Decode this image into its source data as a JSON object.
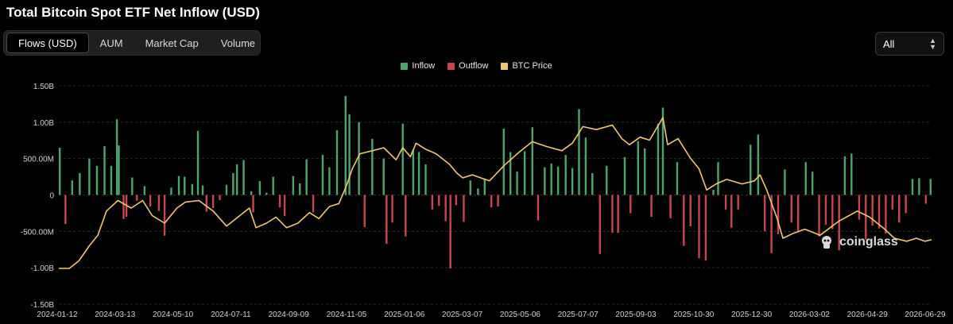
{
  "title": "Total Bitcoin Spot ETF Net Inflow (USD)",
  "tabs": [
    {
      "label": "Flows (USD)",
      "active": true
    },
    {
      "label": "AUM",
      "active": false
    },
    {
      "label": "Market Cap",
      "active": false
    },
    {
      "label": "Volume",
      "active": false
    }
  ],
  "range_select": {
    "value": "All",
    "icon": "up-down-chevron-icon"
  },
  "watermark": {
    "text": "coinglass",
    "icon": "coinglass-logo-icon"
  },
  "colors": {
    "inflow": "#4fa36b",
    "outflow": "#c8474f",
    "btc_price": "#f0c675",
    "grid": "#2a2a2a",
    "axis_text": "#d0d0d0"
  },
  "chart_data": {
    "type": "bar",
    "title": "Total Bitcoin Spot ETF Net Inflow (USD)",
    "legend": [
      "Inflow",
      "Outflow",
      "BTC Price"
    ],
    "legend_position": "top-center",
    "grid": true,
    "ylim": [
      -1500000000,
      1500000000
    ],
    "y_ticks": [
      {
        "value": 1500000000,
        "label": "1.50B"
      },
      {
        "value": 1000000000,
        "label": "1.00B"
      },
      {
        "value": 500000000,
        "label": "500.00M"
      },
      {
        "value": 0,
        "label": "0"
      },
      {
        "value": -500000000,
        "label": "-500.00M"
      },
      {
        "value": -1000000000,
        "label": "-1.00B"
      },
      {
        "value": -1500000000,
        "label": "-1.50B"
      }
    ],
    "x_ticks": [
      "2024-01-12",
      "2024-03-13",
      "2024-05-10",
      "2024-07-11",
      "2024-09-09",
      "2024-11-05",
      "2025-01-06",
      "2025-03-07",
      "2025-05-06",
      "2025-07-07",
      "2025-09-03",
      "2025-10-30",
      "2025-12-30",
      "2026-03-02",
      "2026-04-29",
      "2026-06-29"
    ],
    "date_range": [
      "2024-01-11",
      "2026-07-15"
    ],
    "series": [
      {
        "name": "Inflow / Outflow",
        "kind": "bars",
        "points": [
          [
            "2024-01-12",
            650000000
          ],
          [
            "2024-01-18",
            -400000000
          ],
          [
            "2024-01-25",
            200000000
          ],
          [
            "2024-02-02",
            300000000
          ],
          [
            "2024-02-12",
            500000000
          ],
          [
            "2024-02-20",
            400000000
          ],
          [
            "2024-02-28",
            670000000
          ],
          [
            "2024-03-06",
            400000000
          ],
          [
            "2024-03-12",
            1040000000
          ],
          [
            "2024-03-14",
            680000000
          ],
          [
            "2024-03-19",
            -330000000
          ],
          [
            "2024-03-22",
            -300000000
          ],
          [
            "2024-03-28",
            240000000
          ],
          [
            "2024-04-02",
            -80000000
          ],
          [
            "2024-04-10",
            120000000
          ],
          [
            "2024-04-16",
            -160000000
          ],
          [
            "2024-04-25",
            -220000000
          ],
          [
            "2024-05-01",
            -560000000
          ],
          [
            "2024-05-08",
            100000000
          ],
          [
            "2024-05-16",
            260000000
          ],
          [
            "2024-05-22",
            250000000
          ],
          [
            "2024-05-30",
            150000000
          ],
          [
            "2024-06-05",
            880000000
          ],
          [
            "2024-06-10",
            130000000
          ],
          [
            "2024-06-14",
            -230000000
          ],
          [
            "2024-06-21",
            -180000000
          ],
          [
            "2024-06-28",
            -70000000
          ],
          [
            "2024-07-05",
            140000000
          ],
          [
            "2024-07-12",
            300000000
          ],
          [
            "2024-07-16",
            420000000
          ],
          [
            "2024-07-23",
            480000000
          ],
          [
            "2024-07-31",
            50000000
          ],
          [
            "2024-08-02",
            -240000000
          ],
          [
            "2024-08-09",
            190000000
          ],
          [
            "2024-08-16",
            30000000
          ],
          [
            "2024-08-23",
            250000000
          ],
          [
            "2024-08-30",
            -170000000
          ],
          [
            "2024-09-04",
            -290000000
          ],
          [
            "2024-09-13",
            260000000
          ],
          [
            "2024-09-20",
            160000000
          ],
          [
            "2024-09-27",
            490000000
          ],
          [
            "2024-10-04",
            -240000000
          ],
          [
            "2024-10-14",
            550000000
          ],
          [
            "2024-10-21",
            380000000
          ],
          [
            "2024-10-29",
            890000000
          ],
          [
            "2024-11-07",
            1360000000
          ],
          [
            "2024-11-11",
            1110000000
          ],
          [
            "2024-11-21",
            1000000000
          ],
          [
            "2024-11-27",
            -440000000
          ],
          [
            "2024-12-05",
            770000000
          ],
          [
            "2024-12-17",
            500000000
          ],
          [
            "2024-12-20",
            -670000000
          ],
          [
            "2024-12-26",
            -380000000
          ],
          [
            "2025-01-06",
            980000000
          ],
          [
            "2025-01-09",
            -570000000
          ],
          [
            "2025-01-17",
            620000000
          ],
          [
            "2025-01-23",
            590000000
          ],
          [
            "2025-01-30",
            420000000
          ],
          [
            "2025-02-06",
            -200000000
          ],
          [
            "2025-02-13",
            -150000000
          ],
          [
            "2025-02-20",
            -360000000
          ],
          [
            "2025-02-25",
            -1010000000
          ],
          [
            "2025-03-03",
            -140000000
          ],
          [
            "2025-03-11",
            -370000000
          ],
          [
            "2025-03-18",
            200000000
          ],
          [
            "2025-03-26",
            90000000
          ],
          [
            "2025-04-02",
            220000000
          ],
          [
            "2025-04-09",
            -170000000
          ],
          [
            "2025-04-16",
            -160000000
          ],
          [
            "2025-04-22",
            910000000
          ],
          [
            "2025-04-29",
            590000000
          ],
          [
            "2025-05-06",
            320000000
          ],
          [
            "2025-05-14",
            600000000
          ],
          [
            "2025-05-22",
            930000000
          ],
          [
            "2025-05-28",
            -350000000
          ],
          [
            "2025-06-04",
            380000000
          ],
          [
            "2025-06-11",
            430000000
          ],
          [
            "2025-06-18",
            390000000
          ],
          [
            "2025-06-26",
            550000000
          ],
          [
            "2025-07-03",
            370000000
          ],
          [
            "2025-07-10",
            1180000000
          ],
          [
            "2025-07-17",
            790000000
          ],
          [
            "2025-07-24",
            300000000
          ],
          [
            "2025-08-01",
            -810000000
          ],
          [
            "2025-08-08",
            400000000
          ],
          [
            "2025-08-14",
            -520000000
          ],
          [
            "2025-08-20",
            -520000000
          ],
          [
            "2025-08-27",
            520000000
          ],
          [
            "2025-09-02",
            -250000000
          ],
          [
            "2025-09-10",
            740000000
          ],
          [
            "2025-09-17",
            640000000
          ],
          [
            "2025-09-24",
            -300000000
          ],
          [
            "2025-10-01",
            980000000
          ],
          [
            "2025-10-06",
            1200000000
          ],
          [
            "2025-10-14",
            -320000000
          ],
          [
            "2025-10-21",
            450000000
          ],
          [
            "2025-10-28",
            -700000000
          ],
          [
            "2025-11-04",
            -430000000
          ],
          [
            "2025-11-13",
            -870000000
          ],
          [
            "2025-11-20",
            -900000000
          ],
          [
            "2025-11-28",
            70000000
          ],
          [
            "2025-12-03",
            450000000
          ],
          [
            "2025-12-11",
            -200000000
          ],
          [
            "2025-12-17",
            -450000000
          ],
          [
            "2025-12-24",
            -200000000
          ],
          [
            "2026-01-06",
            690000000
          ],
          [
            "2026-01-14",
            830000000
          ],
          [
            "2026-01-21",
            -500000000
          ],
          [
            "2026-01-28",
            -800000000
          ],
          [
            "2026-02-04",
            -540000000
          ],
          [
            "2026-02-11",
            350000000
          ],
          [
            "2026-02-18",
            -380000000
          ],
          [
            "2026-02-25",
            -510000000
          ],
          [
            "2026-03-05",
            450000000
          ],
          [
            "2026-03-12",
            320000000
          ],
          [
            "2026-03-19",
            -570000000
          ],
          [
            "2026-03-26",
            -410000000
          ],
          [
            "2026-04-02",
            -470000000
          ],
          [
            "2026-04-09",
            -760000000
          ],
          [
            "2026-04-15",
            530000000
          ],
          [
            "2026-04-22",
            570000000
          ],
          [
            "2026-04-30",
            -340000000
          ],
          [
            "2026-05-07",
            -610000000
          ],
          [
            "2026-05-14",
            -420000000
          ],
          [
            "2026-05-21",
            -460000000
          ],
          [
            "2026-05-28",
            -530000000
          ],
          [
            "2026-06-04",
            -200000000
          ],
          [
            "2026-06-11",
            -380000000
          ],
          [
            "2026-06-18",
            -250000000
          ],
          [
            "2026-06-25",
            220000000
          ],
          [
            "2026-07-02",
            230000000
          ],
          [
            "2026-07-09",
            -120000000
          ],
          [
            "2026-07-14",
            220000000
          ]
        ]
      },
      {
        "name": "BTC Price",
        "kind": "line",
        "normalized": true,
        "points": [
          [
            "2024-01-11",
            0.0
          ],
          [
            "2024-01-22",
            0.0
          ],
          [
            "2024-02-01",
            0.05
          ],
          [
            "2024-02-12",
            0.15
          ],
          [
            "2024-02-21",
            0.22
          ],
          [
            "2024-03-01",
            0.38
          ],
          [
            "2024-03-13",
            0.45
          ],
          [
            "2024-03-27",
            0.4
          ],
          [
            "2024-04-08",
            0.45
          ],
          [
            "2024-04-18",
            0.35
          ],
          [
            "2024-05-01",
            0.3
          ],
          [
            "2024-05-14",
            0.4
          ],
          [
            "2024-05-23",
            0.44
          ],
          [
            "2024-06-06",
            0.45
          ],
          [
            "2024-06-21",
            0.38
          ],
          [
            "2024-07-05",
            0.28
          ],
          [
            "2024-07-15",
            0.33
          ],
          [
            "2024-07-29",
            0.4
          ],
          [
            "2024-08-05",
            0.27
          ],
          [
            "2024-08-16",
            0.3
          ],
          [
            "2024-08-26",
            0.34
          ],
          [
            "2024-09-06",
            0.27
          ],
          [
            "2024-09-18",
            0.3
          ],
          [
            "2024-09-30",
            0.37
          ],
          [
            "2024-10-10",
            0.33
          ],
          [
            "2024-10-21",
            0.41
          ],
          [
            "2024-10-31",
            0.43
          ],
          [
            "2024-11-08",
            0.55
          ],
          [
            "2024-11-14",
            0.66
          ],
          [
            "2024-11-22",
            0.76
          ],
          [
            "2024-12-05",
            0.78
          ],
          [
            "2024-12-17",
            0.8
          ],
          [
            "2024-12-30",
            0.72
          ],
          [
            "2025-01-06",
            0.8
          ],
          [
            "2025-01-14",
            0.74
          ],
          [
            "2025-01-20",
            0.83
          ],
          [
            "2025-01-30",
            0.79
          ],
          [
            "2025-02-10",
            0.76
          ],
          [
            "2025-02-24",
            0.69
          ],
          [
            "2025-03-04",
            0.63
          ],
          [
            "2025-03-10",
            0.6
          ],
          [
            "2025-03-20",
            0.62
          ],
          [
            "2025-04-07",
            0.58
          ],
          [
            "2025-04-22",
            0.68
          ],
          [
            "2025-05-08",
            0.77
          ],
          [
            "2025-05-22",
            0.84
          ],
          [
            "2025-06-05",
            0.81
          ],
          [
            "2025-06-22",
            0.78
          ],
          [
            "2025-07-03",
            0.83
          ],
          [
            "2025-07-14",
            0.94
          ],
          [
            "2025-07-28",
            0.92
          ],
          [
            "2025-08-14",
            0.95
          ],
          [
            "2025-08-24",
            0.86
          ],
          [
            "2025-09-01",
            0.82
          ],
          [
            "2025-09-12",
            0.87
          ],
          [
            "2025-09-22",
            0.85
          ],
          [
            "2025-10-06",
            1.0
          ],
          [
            "2025-10-11",
            0.82
          ],
          [
            "2025-10-22",
            0.86
          ],
          [
            "2025-11-04",
            0.73
          ],
          [
            "2025-11-13",
            0.66
          ],
          [
            "2025-11-21",
            0.52
          ],
          [
            "2025-12-01",
            0.56
          ],
          [
            "2025-12-12",
            0.59
          ],
          [
            "2025-12-28",
            0.56
          ],
          [
            "2026-01-10",
            0.58
          ],
          [
            "2026-01-16",
            0.62
          ],
          [
            "2026-01-23",
            0.52
          ],
          [
            "2026-02-03",
            0.33
          ],
          [
            "2026-02-09",
            0.2
          ],
          [
            "2026-02-19",
            0.23
          ],
          [
            "2026-03-04",
            0.26
          ],
          [
            "2026-03-20",
            0.22
          ],
          [
            "2026-04-08",
            0.31
          ],
          [
            "2026-04-28",
            0.38
          ],
          [
            "2026-05-11",
            0.34
          ],
          [
            "2026-05-25",
            0.27
          ],
          [
            "2026-06-06",
            0.2
          ],
          [
            "2026-06-19",
            0.18
          ],
          [
            "2026-06-29",
            0.2
          ],
          [
            "2026-07-08",
            0.18
          ],
          [
            "2026-07-15",
            0.19
          ]
        ]
      }
    ]
  }
}
